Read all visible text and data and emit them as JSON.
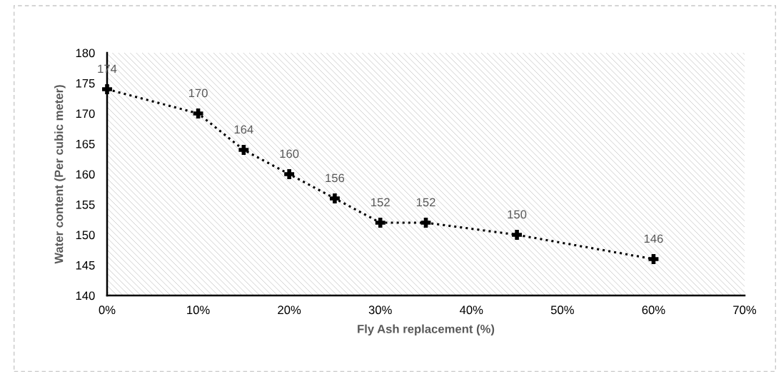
{
  "chart_data": {
    "type": "line",
    "xlabel": "Fly Ash replacement (%)",
    "ylabel": "Water content (Per cubic meter)",
    "x": [
      0,
      10,
      15,
      20,
      25,
      30,
      35,
      45,
      60
    ],
    "series": [
      {
        "color": "#000000",
        "values": [
          174,
          170,
          164,
          160,
          156,
          152,
          152,
          150,
          146
        ]
      }
    ],
    "xlim": [
      0,
      70
    ],
    "xticks": [
      {
        "value": 0,
        "label": "0%"
      },
      {
        "value": 10,
        "label": "10%"
      },
      {
        "value": 20,
        "label": "20%"
      },
      {
        "value": 30,
        "label": "30%"
      },
      {
        "value": 40,
        "label": "40%"
      },
      {
        "value": 50,
        "label": "50%"
      },
      {
        "value": 60,
        "label": "60%"
      },
      {
        "value": 70,
        "label": "70%"
      }
    ],
    "ylim": [
      140,
      180
    ],
    "yticks": [
      140,
      145,
      150,
      155,
      160,
      165,
      170,
      175,
      180
    ],
    "grid": false,
    "marker": "cross",
    "line_style": "dotted",
    "data_labels": true
  }
}
